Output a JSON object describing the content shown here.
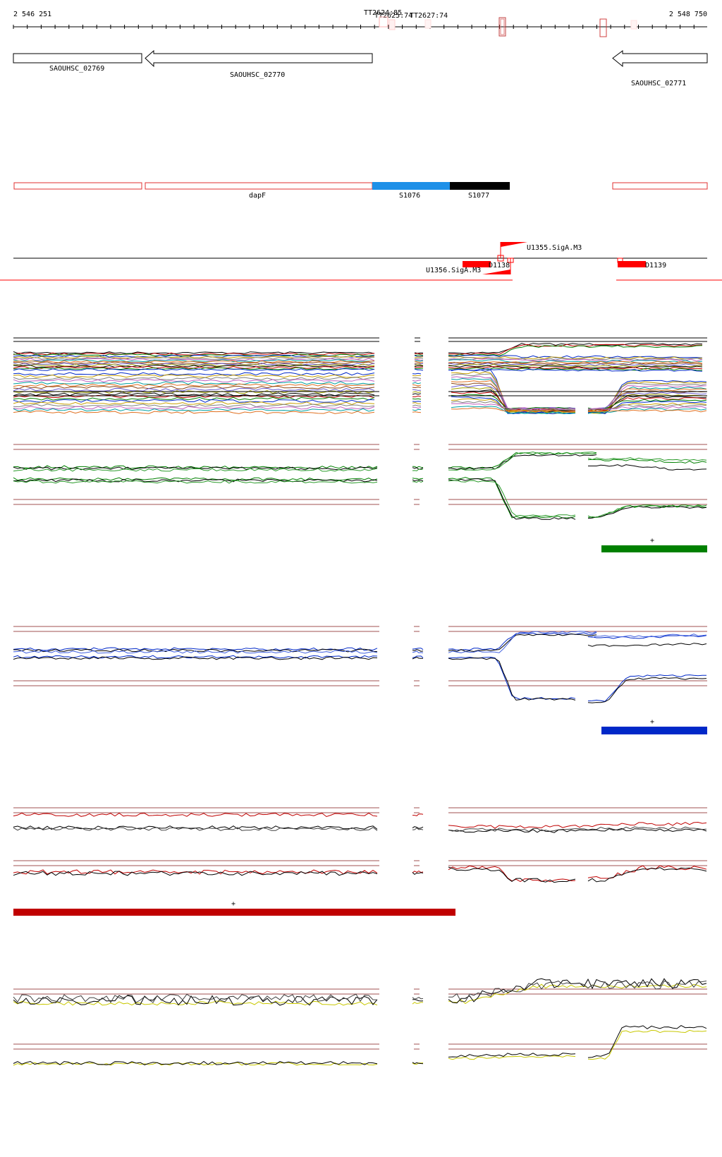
{
  "ruler": {
    "start_label": "2 546 251",
    "end_label": "2 548 750",
    "terminator_labels": [
      "TT2624:85",
      "TT2625:74",
      "TT2627:74"
    ]
  },
  "genes": [
    {
      "name": "SAOUHSC_02769",
      "strand": "-"
    },
    {
      "name": "SAOUHSC_02770",
      "strand": "-"
    },
    {
      "name": "SAOUHSC_02771",
      "strand": "-"
    }
  ],
  "segments": {
    "labels": [
      "dapF",
      "S1076",
      "S1077"
    ],
    "colors": {
      "outline": "#e03030",
      "S1076": "#1e90e8",
      "S1077": "#000000"
    }
  },
  "promoters": {
    "labels": [
      "U1355.SigA.M3",
      "U1356.SigA.M3",
      "D1138",
      "D1139"
    ],
    "color": "#ff0000"
  },
  "panels": {
    "condition_marks": [
      "+",
      "+",
      "+"
    ],
    "colors": {
      "green": "#008000",
      "blue": "#0028c8",
      "red": "#c00000",
      "yellow": "#c8c800",
      "guide": "#a05050"
    }
  }
}
